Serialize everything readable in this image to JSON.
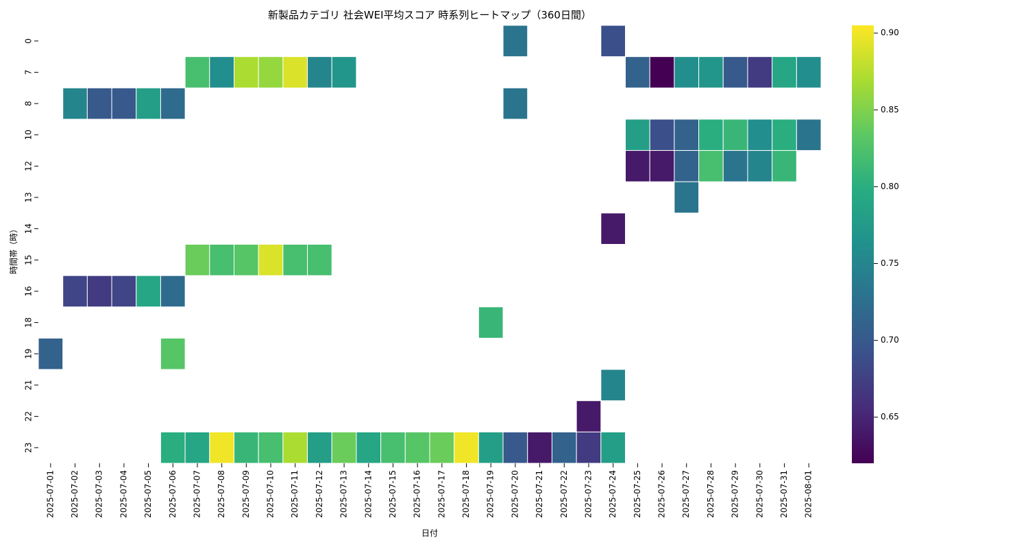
{
  "chart_data": {
    "type": "heatmap",
    "title": "新製品カテゴリ 社会WEI平均スコア 時系列ヒートマップ（360日間）",
    "xlabel": "日付",
    "ylabel": "時間帯（時）",
    "x_categories": [
      "2025-07-01",
      "2025-07-02",
      "2025-07-03",
      "2025-07-04",
      "2025-07-05",
      "2025-07-06",
      "2025-07-07",
      "2025-07-08",
      "2025-07-09",
      "2025-07-10",
      "2025-07-11",
      "2025-07-12",
      "2025-07-13",
      "2025-07-14",
      "2025-07-15",
      "2025-07-16",
      "2025-07-17",
      "2025-07-18",
      "2025-07-19",
      "2025-07-20",
      "2025-07-21",
      "2025-07-22",
      "2025-07-23",
      "2025-07-24",
      "2025-07-25",
      "2025-07-26",
      "2025-07-27",
      "2025-07-28",
      "2025-07-29",
      "2025-07-30",
      "2025-07-31",
      "2025-08-01"
    ],
    "y_categories": [
      "0",
      "7",
      "8",
      "10",
      "12",
      "13",
      "14",
      "15",
      "16",
      "18",
      "19",
      "21",
      "22",
      "23"
    ],
    "values": [
      [
        null,
        null,
        null,
        null,
        null,
        null,
        null,
        null,
        null,
        null,
        null,
        null,
        null,
        null,
        null,
        null,
        null,
        null,
        null,
        0.73,
        null,
        null,
        null,
        0.69,
        null,
        null,
        null,
        null,
        null,
        null,
        null,
        null
      ],
      [
        null,
        null,
        null,
        null,
        null,
        null,
        0.82,
        0.76,
        0.87,
        0.86,
        0.89,
        0.75,
        0.77,
        null,
        null,
        null,
        null,
        null,
        null,
        null,
        null,
        null,
        null,
        null,
        0.71,
        0.62,
        0.76,
        0.77,
        0.7,
        0.67,
        0.79,
        0.76
      ],
      [
        null,
        0.75,
        0.7,
        0.7,
        0.78,
        0.72,
        null,
        null,
        null,
        null,
        null,
        null,
        null,
        null,
        null,
        null,
        null,
        null,
        null,
        0.73,
        null,
        null,
        null,
        null,
        null,
        null,
        null,
        null,
        null,
        null,
        null,
        null
      ],
      [
        null,
        null,
        null,
        null,
        null,
        null,
        null,
        null,
        null,
        null,
        null,
        null,
        null,
        null,
        null,
        null,
        null,
        null,
        null,
        null,
        null,
        null,
        null,
        null,
        0.78,
        0.69,
        0.71,
        0.8,
        0.81,
        0.76,
        0.8,
        0.73
      ],
      [
        null,
        null,
        null,
        null,
        null,
        null,
        null,
        null,
        null,
        null,
        null,
        null,
        null,
        null,
        null,
        null,
        null,
        null,
        null,
        null,
        null,
        null,
        null,
        null,
        0.64,
        0.64,
        0.71,
        0.82,
        0.73,
        0.75,
        0.81,
        null
      ],
      [
        null,
        null,
        null,
        null,
        null,
        null,
        null,
        null,
        null,
        null,
        null,
        null,
        null,
        null,
        null,
        null,
        null,
        null,
        null,
        null,
        null,
        null,
        null,
        null,
        null,
        null,
        0.73,
        null,
        null,
        null,
        null,
        null
      ],
      [
        null,
        null,
        null,
        null,
        null,
        null,
        null,
        null,
        null,
        null,
        null,
        null,
        null,
        null,
        null,
        null,
        null,
        null,
        null,
        null,
        null,
        null,
        null,
        0.64,
        null,
        null,
        null,
        null,
        null,
        null,
        null,
        null
      ],
      [
        null,
        null,
        null,
        null,
        null,
        null,
        0.84,
        0.82,
        0.83,
        0.89,
        0.82,
        0.82,
        null,
        null,
        null,
        null,
        null,
        null,
        null,
        null,
        null,
        null,
        null,
        null,
        null,
        null,
        null,
        null,
        null,
        null,
        null,
        null
      ],
      [
        null,
        0.68,
        0.67,
        0.68,
        0.79,
        0.72,
        null,
        null,
        null,
        null,
        null,
        null,
        null,
        null,
        null,
        null,
        null,
        null,
        null,
        null,
        null,
        null,
        null,
        null,
        null,
        null,
        null,
        null,
        null,
        null,
        null,
        null
      ],
      [
        null,
        null,
        null,
        null,
        null,
        null,
        null,
        null,
        null,
        null,
        null,
        null,
        null,
        null,
        null,
        null,
        null,
        null,
        0.81,
        null,
        null,
        null,
        null,
        null,
        null,
        null,
        null,
        null,
        null,
        null,
        null,
        null
      ],
      [
        0.71,
        null,
        null,
        null,
        null,
        0.83,
        null,
        null,
        null,
        null,
        null,
        null,
        null,
        null,
        null,
        null,
        null,
        null,
        null,
        null,
        null,
        null,
        null,
        null,
        null,
        null,
        null,
        null,
        null,
        null,
        null,
        null
      ],
      [
        null,
        null,
        null,
        null,
        null,
        null,
        null,
        null,
        null,
        null,
        null,
        null,
        null,
        null,
        null,
        null,
        null,
        null,
        null,
        null,
        null,
        null,
        null,
        0.75,
        null,
        null,
        null,
        null,
        null,
        null,
        null,
        null
      ],
      [
        null,
        null,
        null,
        null,
        null,
        null,
        null,
        null,
        null,
        null,
        null,
        null,
        null,
        null,
        null,
        null,
        null,
        null,
        null,
        null,
        null,
        null,
        0.64,
        null,
        null,
        null,
        null,
        null,
        null,
        null,
        null,
        null
      ],
      [
        null,
        null,
        null,
        null,
        null,
        0.8,
        0.79,
        0.9,
        0.81,
        0.82,
        0.87,
        0.78,
        0.84,
        0.79,
        0.82,
        0.83,
        0.84,
        0.9,
        0.78,
        0.7,
        0.64,
        0.71,
        0.67,
        0.78,
        null,
        null,
        null,
        null,
        null,
        null,
        null,
        null
      ]
    ],
    "colorbar": {
      "colormap": "viridis",
      "vmin": 0.62,
      "vmax": 0.905,
      "ticks": [
        0.65,
        0.7,
        0.75,
        0.8,
        0.85,
        0.9
      ],
      "tick_labels": [
        "0.65",
        "0.70",
        "0.75",
        "0.80",
        "0.85",
        "0.90"
      ]
    },
    "grid": false,
    "legend": "colorbar-right"
  }
}
